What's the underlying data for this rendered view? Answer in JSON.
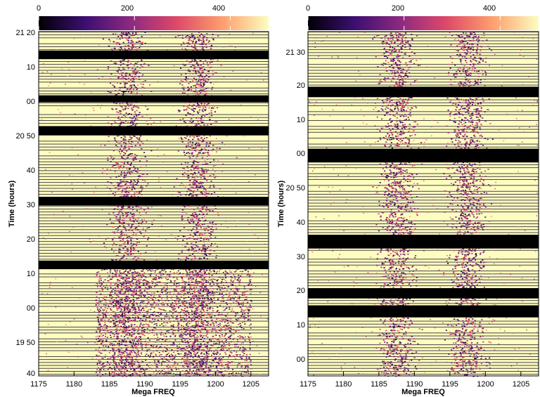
{
  "colormap": {
    "name": "magma",
    "stops": [
      "#000004",
      "#3b0f70",
      "#8c2981",
      "#de4968",
      "#fe9f6d",
      "#fcfdbf"
    ],
    "ticks": [
      0,
      200,
      400
    ],
    "range": [
      0,
      480
    ]
  },
  "chart_data": [
    {
      "type": "heatmap",
      "title": "",
      "xlabel": "Mega FREQ",
      "ylabel": "Time (hours)",
      "x_ticks": [
        1175,
        1180,
        1185,
        1190,
        1195,
        1200,
        1205
      ],
      "xlim": [
        1175,
        1207.5
      ],
      "y_ticks": [
        "21 20",
        "10",
        "00",
        "20 50",
        "40",
        "30",
        "20",
        "10",
        "00",
        "19 50",
        "40"
      ],
      "ylim_minutes": [
        0,
        100
      ],
      "bands_mhz": [
        {
          "center": 1187.5,
          "width": 3.5
        },
        {
          "center": 1197.5,
          "width": 3.5
        }
      ],
      "blanked_intervals_minutes": [
        [
          5.5,
          8
        ],
        [
          18.5,
          20.5
        ],
        [
          27.5,
          30
        ],
        [
          48,
          50.5
        ],
        [
          66.5,
          69
        ]
      ],
      "noisy_low_region_minutes": [
        68,
        100
      ]
    },
    {
      "type": "heatmap",
      "title": "",
      "xlabel": "Mega FREQ",
      "ylabel": "Time (hours)",
      "x_ticks": [
        1175,
        1180,
        1185,
        1190,
        1195,
        1200,
        1205
      ],
      "xlim": [
        1175,
        1207.5
      ],
      "y_ticks": [
        "21 30",
        "20",
        "10",
        "00",
        "20 50",
        "40",
        "30",
        "20",
        "10",
        "00"
      ],
      "ylim_minutes": [
        0,
        100
      ],
      "bands_mhz": [
        {
          "center": 1187.5,
          "width": 3.5
        },
        {
          "center": 1197.5,
          "width": 3.5
        }
      ],
      "blanked_intervals_minutes": [
        [
          16,
          19
        ],
        [
          34,
          38
        ],
        [
          59,
          63
        ],
        [
          74.5,
          77.5
        ],
        [
          79.5,
          83
        ]
      ],
      "noisy_low_region_minutes": []
    }
  ]
}
